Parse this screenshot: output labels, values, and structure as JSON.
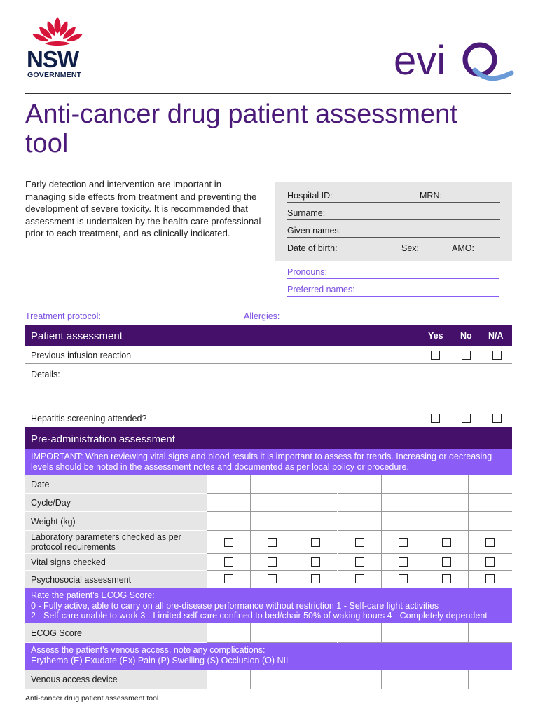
{
  "header": {
    "nsw_word": "NSW",
    "nsw_gov": "GOVERNMENT",
    "eviq_logo": "eviQ",
    "colors": {
      "purple": "#4c1b7a",
      "nsw_red": "#d7153a",
      "nsw_navy": "#0f1f47",
      "violet": "#8b5cf6"
    }
  },
  "title": "Anti-cancer drug patient assessment tool",
  "intro": "Early detection and intervention are important in managing side effects from treatment and preventing the development of severe toxicity. It is recommended that assessment is undertaken by the health care professional prior to each treatment, and as clinically indicated.",
  "patient_id": {
    "hospital_id": "Hospital ID:",
    "mrn": "MRN:",
    "surname": "Surname:",
    "given_names": "Given names:",
    "dob": "Date of birth:",
    "sex": "Sex:",
    "amo": "AMO:"
  },
  "pronouns": "Pronouns:",
  "preferred_names": "Preferred names:",
  "treatment_protocol": "Treatment protocol:",
  "allergies": "Allergies:",
  "patient_assessment": {
    "heading": "Patient assessment",
    "col_yes": "Yes",
    "col_no": "No",
    "col_na": "N/A",
    "infusion": "Previous infusion reaction",
    "details": "Details:",
    "hepatitis": "Hepatitis screening attended?"
  },
  "pre_admin": {
    "heading": "Pre-administration assessment",
    "important": "IMPORTANT: When reviewing vital signs and blood results it is important to assess for trends. Increasing or decreasing levels should be noted in the assessment notes and documented as per local policy or procedure.",
    "rows": {
      "date": "Date",
      "cycle": "Cycle/Day",
      "weight": "Weight (kg)",
      "lab": "Laboratory parameters checked as per protocol requirements",
      "vitals": "Vital signs checked",
      "psycho": "Psychosocial assessment",
      "ecog": "ECOG Score",
      "venous": "Venous access device"
    },
    "ecog_band": {
      "line1": "Rate the patient's ECOG Score:",
      "line2": "0 - Fully active, able to carry on all pre-disease performance without restriction 1 - Self-care light activities",
      "line3": "2 - Self-care unable to work 3 - Limited self-care confined to bed/chair 50% of waking hours 4 - Completely dependent"
    },
    "venous_band": {
      "line1": "Assess the patient's venous access, note any complications:",
      "line2": "Erythema (E) Exudate (Ex) Pain (P) Swelling (S) Occlusion (O) NIL"
    }
  },
  "footer": "Anti-cancer drug patient assessment tool"
}
